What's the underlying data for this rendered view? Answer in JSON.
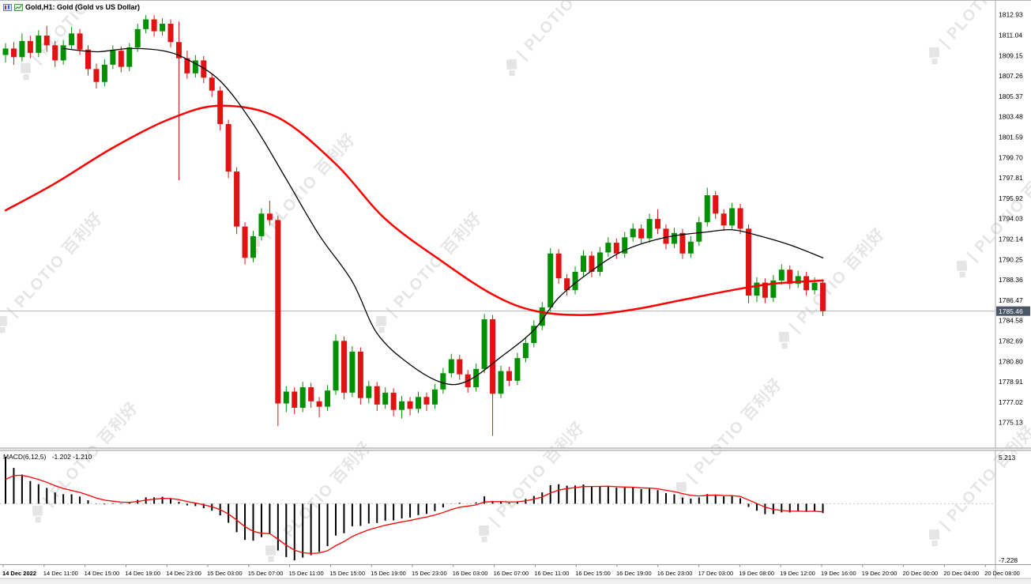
{
  "window": {
    "title": "Gold,H1: Gold (Gold vs US Dollar)"
  },
  "price_axis": {
    "labels": [
      "1812.93",
      "1811.04",
      "1809.15",
      "1807.26",
      "1805.37",
      "1803.48",
      "1801.59",
      "1799.70",
      "1797.81",
      "1795.92",
      "1794.03",
      "1792.14",
      "1790.25",
      "1788.36",
      "1786.47",
      "1784.58",
      "1782.69",
      "1780.80",
      "1778.91",
      "1777.02",
      "1775.13"
    ],
    "current_price": "1785.46",
    "badge_bg": "#4a5766"
  },
  "time_axis": {
    "labels": [
      "14 Dec 2022",
      "14 Dec 11:00",
      "14 Dec 15:00",
      "14 Dec 19:00",
      "14 Dec 23:00",
      "15 Dec 03:00",
      "15 Dec 07:00",
      "15 Dec 11:00",
      "15 Dec 15:00",
      "15 Dec 19:00",
      "15 Dec 23:00",
      "16 Dec 03:00",
      "16 Dec 07:00",
      "16 Dec 11:00",
      "16 Dec 15:00",
      "16 Dec 19:00",
      "16 Dec 23:00",
      "17 Dec 03:00",
      "19 Dec 08:00",
      "19 Dec 12:00",
      "19 Dec 16:00",
      "19 Dec 20:00",
      "20 Dec 00:00",
      "20 Dec 04:00",
      "20 Dec 08:00"
    ]
  },
  "macd_panel": {
    "label": "MACD(6,12,5)",
    "values_text": "-1.202 -1.210",
    "axis_max": "5.213",
    "axis_min": "-7.228"
  },
  "watermark": {
    "text": "| PLOTIO 百利好"
  },
  "chart_data": {
    "type": "candlestick",
    "symbol": "Gold",
    "timeframe": "H1",
    "title": "Gold (Gold vs US Dollar)",
    "y_range": [
      1772.7,
      1813.2
    ],
    "colors": {
      "bull": "#009000",
      "bear": "#e01212",
      "price_line": "#b4b4b4"
    },
    "candles": [
      [
        1809.2,
        1810.3,
        1808.5,
        1809.8
      ],
      [
        1809.8,
        1810.4,
        1808.3,
        1809.0
      ],
      [
        1809.0,
        1811.2,
        1808.6,
        1810.5
      ],
      [
        1810.5,
        1811.0,
        1808.9,
        1809.4
      ],
      [
        1809.4,
        1811.5,
        1809.0,
        1811.0
      ],
      [
        1811.0,
        1811.9,
        1809.5,
        1810.1
      ],
      [
        1810.1,
        1810.5,
        1808.1,
        1808.7
      ],
      [
        1808.7,
        1810.6,
        1808.3,
        1810.1
      ],
      [
        1810.1,
        1811.8,
        1809.7,
        1811.2
      ],
      [
        1811.2,
        1811.6,
        1809.2,
        1809.7
      ],
      [
        1809.7,
        1810.1,
        1807.3,
        1807.9
      ],
      [
        1807.9,
        1808.4,
        1806.1,
        1806.7
      ],
      [
        1806.7,
        1808.8,
        1806.3,
        1808.3
      ],
      [
        1808.3,
        1810.1,
        1807.9,
        1809.6
      ],
      [
        1809.6,
        1810.0,
        1807.6,
        1808.1
      ],
      [
        1808.1,
        1810.3,
        1807.7,
        1809.9
      ],
      [
        1809.9,
        1812.1,
        1809.5,
        1811.6
      ],
      [
        1811.6,
        1812.9,
        1811.2,
        1812.5
      ],
      [
        1812.5,
        1812.9,
        1810.9,
        1811.4
      ],
      [
        1811.4,
        1812.6,
        1811.0,
        1812.1
      ],
      [
        1812.1,
        1812.5,
        1809.9,
        1810.4
      ],
      [
        1810.4,
        1812.3,
        1797.6,
        1808.9
      ],
      [
        1808.9,
        1809.6,
        1807.0,
        1807.5
      ],
      [
        1807.5,
        1809.2,
        1807.1,
        1808.7
      ],
      [
        1808.7,
        1809.1,
        1806.6,
        1807.1
      ],
      [
        1807.1,
        1807.5,
        1805.3,
        1805.9
      ],
      [
        1805.9,
        1806.3,
        1802.2,
        1802.8
      ],
      [
        1802.8,
        1803.2,
        1797.8,
        1798.4
      ],
      [
        1798.4,
        1798.8,
        1792.6,
        1793.3
      ],
      [
        1793.3,
        1793.7,
        1789.8,
        1790.4
      ],
      [
        1790.4,
        1792.9,
        1790.0,
        1792.4
      ],
      [
        1792.4,
        1795.0,
        1792.0,
        1794.5
      ],
      [
        1794.5,
        1795.7,
        1793.4,
        1793.9
      ],
      [
        1793.9,
        1794.3,
        1774.8,
        1776.9
      ],
      [
        1776.9,
        1778.5,
        1776.1,
        1778.0
      ],
      [
        1778.0,
        1778.4,
        1775.9,
        1776.5
      ],
      [
        1776.5,
        1778.9,
        1776.1,
        1778.4
      ],
      [
        1778.4,
        1778.8,
        1776.5,
        1777.1
      ],
      [
        1777.1,
        1777.5,
        1775.6,
        1776.6
      ],
      [
        1776.6,
        1778.6,
        1776.2,
        1778.1
      ],
      [
        1778.1,
        1783.3,
        1777.7,
        1782.7
      ],
      [
        1782.7,
        1783.1,
        1777.3,
        1777.9
      ],
      [
        1777.9,
        1782.2,
        1777.5,
        1781.7
      ],
      [
        1781.7,
        1782.1,
        1776.8,
        1777.4
      ],
      [
        1777.4,
        1779.0,
        1776.9,
        1778.5
      ],
      [
        1778.5,
        1778.9,
        1776.2,
        1776.8
      ],
      [
        1776.8,
        1778.4,
        1776.4,
        1777.9
      ],
      [
        1777.9,
        1778.3,
        1775.7,
        1776.3
      ],
      [
        1776.3,
        1777.6,
        1775.5,
        1777.1
      ],
      [
        1777.1,
        1777.5,
        1775.8,
        1776.4
      ],
      [
        1776.4,
        1778.0,
        1776.0,
        1777.5
      ],
      [
        1777.5,
        1777.9,
        1776.2,
        1776.8
      ],
      [
        1776.8,
        1778.7,
        1776.4,
        1778.2
      ],
      [
        1778.2,
        1780.2,
        1777.8,
        1779.7
      ],
      [
        1779.7,
        1781.5,
        1779.3,
        1781.0
      ],
      [
        1781.0,
        1781.4,
        1779.1,
        1779.6
      ],
      [
        1779.6,
        1780.0,
        1777.9,
        1778.4
      ],
      [
        1778.4,
        1780.6,
        1778.0,
        1780.1
      ],
      [
        1780.1,
        1785.2,
        1779.7,
        1784.7
      ],
      [
        1784.7,
        1785.1,
        1773.9,
        1777.8
      ],
      [
        1777.8,
        1780.4,
        1777.4,
        1779.9
      ],
      [
        1779.9,
        1780.3,
        1778.5,
        1779.0
      ],
      [
        1779.0,
        1781.6,
        1778.6,
        1781.1
      ],
      [
        1781.1,
        1783.0,
        1780.7,
        1782.5
      ],
      [
        1782.5,
        1784.6,
        1782.1,
        1784.1
      ],
      [
        1784.1,
        1786.3,
        1783.7,
        1785.8
      ],
      [
        1785.8,
        1791.3,
        1785.4,
        1790.8
      ],
      [
        1790.8,
        1791.2,
        1788.0,
        1788.5
      ],
      [
        1788.5,
        1788.9,
        1786.9,
        1787.4
      ],
      [
        1787.4,
        1789.6,
        1787.0,
        1789.1
      ],
      [
        1789.1,
        1791.1,
        1788.7,
        1790.6
      ],
      [
        1790.6,
        1791.0,
        1788.6,
        1789.1
      ],
      [
        1789.1,
        1791.4,
        1788.7,
        1790.9
      ],
      [
        1790.9,
        1792.3,
        1790.5,
        1791.8
      ],
      [
        1791.8,
        1792.2,
        1790.3,
        1790.8
      ],
      [
        1790.8,
        1792.8,
        1790.4,
        1792.3
      ],
      [
        1792.3,
        1793.6,
        1791.9,
        1793.1
      ],
      [
        1793.1,
        1793.5,
        1791.7,
        1792.2
      ],
      [
        1792.2,
        1794.5,
        1791.8,
        1794.0
      ],
      [
        1794.0,
        1794.9,
        1792.6,
        1793.1
      ],
      [
        1793.1,
        1793.5,
        1791.2,
        1791.7
      ],
      [
        1791.7,
        1793.2,
        1791.3,
        1792.7
      ],
      [
        1792.7,
        1793.1,
        1790.3,
        1790.8
      ],
      [
        1790.8,
        1792.4,
        1790.4,
        1791.9
      ],
      [
        1791.9,
        1794.2,
        1791.5,
        1793.7
      ],
      [
        1793.7,
        1796.9,
        1793.3,
        1796.2
      ],
      [
        1796.2,
        1796.6,
        1794.0,
        1794.5
      ],
      [
        1794.5,
        1794.9,
        1792.9,
        1793.4
      ],
      [
        1793.4,
        1795.5,
        1793.0,
        1795.0
      ],
      [
        1795.0,
        1795.4,
        1792.6,
        1793.1
      ],
      [
        1793.1,
        1793.5,
        1786.2,
        1786.9
      ],
      [
        1786.9,
        1788.6,
        1786.3,
        1788.1
      ],
      [
        1788.1,
        1788.5,
        1786.2,
        1786.7
      ],
      [
        1786.7,
        1788.8,
        1786.3,
        1788.3
      ],
      [
        1788.3,
        1789.8,
        1787.9,
        1789.3
      ],
      [
        1789.3,
        1789.7,
        1787.5,
        1788.0
      ],
      [
        1788.0,
        1789.2,
        1787.6,
        1788.7
      ],
      [
        1788.7,
        1789.1,
        1786.9,
        1787.4
      ],
      [
        1787.4,
        1788.6,
        1787.0,
        1788.1
      ],
      [
        1788.1,
        1788.4,
        1785.0,
        1785.46
      ]
    ],
    "moving_averages": [
      {
        "name": "slow-ma-red",
        "color": "#ff0000",
        "width": 2.5,
        "points": [
          [
            0,
            1794.8
          ],
          [
            6,
            1797.3
          ],
          [
            13,
            1800.6
          ],
          [
            20,
            1803.3
          ],
          [
            26,
            1804.5
          ],
          [
            33,
            1803.4
          ],
          [
            40,
            1799.1
          ],
          [
            46,
            1794.0
          ],
          [
            53,
            1790.0
          ],
          [
            59,
            1787.0
          ],
          [
            64,
            1785.5
          ],
          [
            70,
            1785.1
          ],
          [
            76,
            1785.6
          ],
          [
            82,
            1786.5
          ],
          [
            88,
            1787.4
          ],
          [
            93,
            1788.0
          ],
          [
            99,
            1788.3
          ]
        ]
      },
      {
        "name": "fast-ma-black",
        "color": "#000000",
        "width": 1.3,
        "points": [
          [
            7,
            1809.8
          ],
          [
            11,
            1809.5
          ],
          [
            15,
            1809.8
          ],
          [
            19,
            1809.6
          ],
          [
            22,
            1808.8
          ],
          [
            26,
            1806.8
          ],
          [
            30,
            1802.8
          ],
          [
            34,
            1797.7
          ],
          [
            38,
            1792.5
          ],
          [
            42,
            1788.2
          ],
          [
            45,
            1783.4
          ],
          [
            49,
            1780.5
          ],
          [
            53,
            1778.8
          ],
          [
            56,
            1779.0
          ],
          [
            60,
            1781.2
          ],
          [
            64,
            1783.7
          ],
          [
            67,
            1786.7
          ],
          [
            71,
            1789.2
          ],
          [
            75,
            1791.1
          ],
          [
            80,
            1792.3
          ],
          [
            85,
            1792.8
          ],
          [
            88,
            1793.0
          ],
          [
            91,
            1792.5
          ],
          [
            95,
            1791.6
          ],
          [
            99,
            1790.4
          ]
        ]
      }
    ],
    "macd": {
      "fast": 6,
      "slow": 12,
      "signal": 5,
      "seed_fast": 1813.5,
      "seed_slow": 1806.5,
      "seed_signal": 1.5,
      "hist_color": "#000000",
      "signal_color": "#ff0000",
      "displayed_values": [
        -1.202,
        -1.21
      ],
      "displayed_range": [
        -7.228,
        5.213
      ]
    }
  }
}
